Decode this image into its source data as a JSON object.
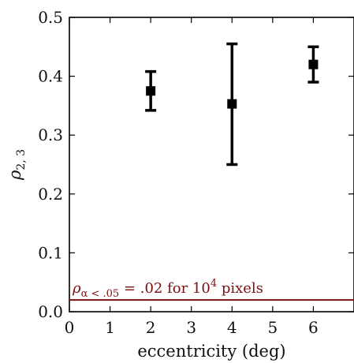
{
  "chart_data": {
    "type": "scatter",
    "xlabel": "eccentricity (deg)",
    "ylabel_base": "ρ",
    "ylabel_sub": "2, 3",
    "xlim": [
      0,
      7
    ],
    "ylim": [
      0,
      0.5
    ],
    "x_ticks": [
      0,
      1,
      2,
      3,
      4,
      5,
      6
    ],
    "x_tick_labels": [
      "0",
      "1",
      "2",
      "3",
      "4",
      "5",
      "6"
    ],
    "y_ticks": [
      0,
      0.1,
      0.2,
      0.3,
      0.4,
      0.5
    ],
    "y_tick_labels": [
      "0.0",
      "0.1",
      "0.2",
      "0.3",
      "0.4",
      "0.5"
    ],
    "grid": false,
    "series": [
      {
        "marker": "square",
        "color": "#000000",
        "points": [
          {
            "x": 2,
            "y": 0.375,
            "y_low": 0.342,
            "y_high": 0.408
          },
          {
            "x": 4,
            "y": 0.353,
            "y_low": 0.25,
            "y_high": 0.455
          },
          {
            "x": 6,
            "y": 0.42,
            "y_low": 0.39,
            "y_high": 0.45
          }
        ]
      }
    ],
    "reference_line": {
      "y": 0.02,
      "color": "#7b1010",
      "label": {
        "rho": "ρ",
        "sub": "α < .05",
        "eq": " = .02 for 10",
        "sup": "4",
        "tail": " pixels"
      }
    }
  }
}
